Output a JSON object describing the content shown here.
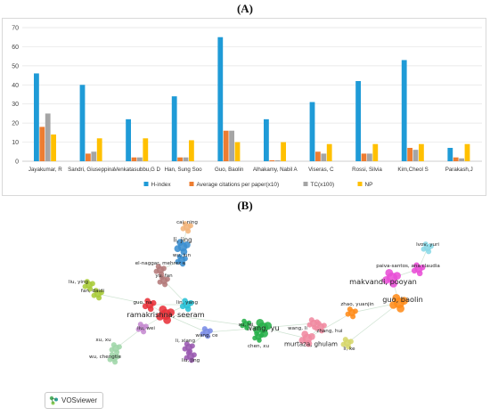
{
  "panels": {
    "a_label": "(A)",
    "b_label": "(B)"
  },
  "chart_data": {
    "type": "bar",
    "categories": [
      "Jayakumar, R",
      "Sandri, Giuseppina",
      "Venkatasubbu,G D",
      "Han, Sung Soo",
      "Guo, Baolin",
      "Alhakamy, Nabil A",
      "Viseras, C",
      "Rossi, Silvia",
      "Kim,Cheol S",
      "Parakash,J"
    ],
    "series": [
      {
        "name": "H-index",
        "color": "#1f9bd7",
        "values": [
          46,
          40,
          22,
          34,
          65,
          22,
          31,
          42,
          53,
          7
        ]
      },
      {
        "name": "Average citations per paper(x10)",
        "color": "#ed7d31",
        "values": [
          18,
          4,
          2,
          2,
          16,
          0.5,
          5,
          4,
          7,
          2
        ]
      },
      {
        "name": "TC(x100)",
        "color": "#a5a5a5",
        "values": [
          25,
          5,
          2,
          2,
          16,
          0.5,
          4,
          4,
          6,
          1.5
        ]
      },
      {
        "name": "NP",
        "color": "#ffc000",
        "values": [
          14,
          12,
          12,
          11,
          10,
          10,
          9,
          9,
          9,
          9
        ]
      }
    ],
    "ylim": [
      0,
      70
    ],
    "yticks": [
      0,
      10,
      20,
      30,
      40,
      50,
      60,
      70
    ],
    "grid": true,
    "legend_position": "bottom"
  },
  "network": {
    "software": "VOSviewer",
    "clusters": [
      {
        "color": "#f3b47a",
        "label": "cai, ning",
        "size": 5.5
      },
      {
        "color": "#3a8ed0",
        "label": "li, jing",
        "size": 7
      },
      {
        "color": "#3a8ed0",
        "label": "wu, jun",
        "size": 5.5
      },
      {
        "color": "#b47a7a",
        "label": "el-naggar, mehrez e",
        "size": 5.5
      },
      {
        "color": "#b47a7a",
        "label": "yu, fan",
        "size": 5.5
      },
      {
        "color": "#aacc3a",
        "label": "liu, ying",
        "size": 5.5
      },
      {
        "color": "#aacc3a",
        "label": "fan, daidi",
        "size": 5.5
      },
      {
        "color": "#e8323a",
        "label": "guo, na",
        "size": 6
      },
      {
        "color": "#29c2d6",
        "label": "lin, yang",
        "size": 6
      },
      {
        "color": "#e8323a",
        "label": "ramakrishna, seeram",
        "size": 8
      },
      {
        "color": "#c58ad0",
        "label": "liu, wei",
        "size": 5.5
      },
      {
        "color": "#7a8ce6",
        "label": "wang, ce",
        "size": 5.5
      },
      {
        "color": "#27b14a",
        "label": "wang, yu",
        "size": 8
      },
      {
        "color": "#27b14a",
        "label": "chen, xu",
        "size": 5
      },
      {
        "color": "#27b14a",
        "label": "xu, lei",
        "size": 5
      },
      {
        "color": "#9a5ab0",
        "label": "li, xiang",
        "size": 5.5
      },
      {
        "color": "#9a5ab0",
        "label": "liu, jing",
        "size": 5.5
      },
      {
        "color": "#9fd6a8",
        "label": "xu, xu",
        "size": 5.5
      },
      {
        "color": "#9fd6a8",
        "label": "wu, chengtie",
        "size": 5.5
      },
      {
        "color": "#f08aa0",
        "label": "wang, li",
        "size": 5.5
      },
      {
        "color": "#f08aa0",
        "label": "zhang, hui",
        "size": 5.5
      },
      {
        "color": "#f08aa0",
        "label": "murtaza, ghulam",
        "size": 7
      },
      {
        "color": "#ff8c1a",
        "label": "guo, baolin",
        "size": 8
      },
      {
        "color": "#ff8c1a",
        "label": "zhao, yuanjin",
        "size": 5.5
      },
      {
        "color": "#d6d66a",
        "label": "li, ke",
        "size": 5.5
      },
      {
        "color": "#e84fd6",
        "label": "makvandi, pooyan",
        "size": 8
      },
      {
        "color": "#e84fd6",
        "label": "paiva-santos, ana claudia",
        "size": 6
      },
      {
        "color": "#8ad8e6",
        "label": "lvov, yuri",
        "size": 5.5
      }
    ]
  }
}
